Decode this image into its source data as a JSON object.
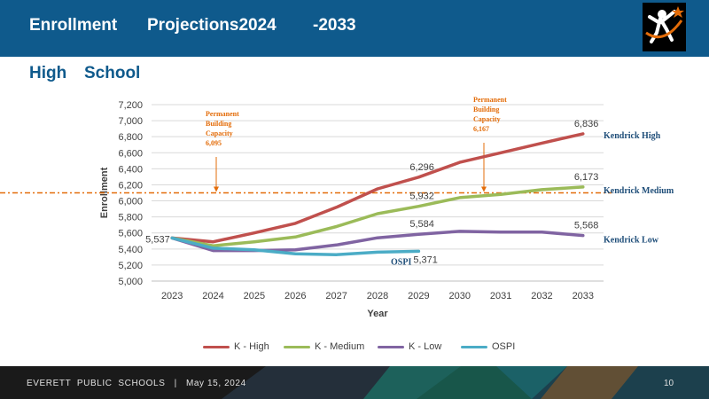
{
  "header": {
    "title_part1": "Enrollment",
    "title_part2": "Projections2024",
    "title_part3": "-2033"
  },
  "subtitle_part1": "High",
  "subtitle_part2": "School",
  "footer": {
    "org": "EVERETT  PUBLIC  SCHOOLS   |   May 15, 2024",
    "page": "10"
  },
  "colors": {
    "header_bg": "#0f5a8c",
    "k_high": "#c0504d",
    "k_medium": "#9bbb59",
    "k_low": "#8064a2",
    "ospi": "#4bacc6",
    "capacity": "#e36c09",
    "annotation_blue": "#1f4e79"
  },
  "chart_data": {
    "type": "line",
    "xlabel": "Year",
    "ylabel": "Enrollment",
    "ylim": [
      5000,
      7200
    ],
    "y_ticks": [
      "5,000",
      "5,200",
      "5,400",
      "5,600",
      "5,800",
      "6,000",
      "6,200",
      "6,400",
      "6,600",
      "6,800",
      "7,000",
      "7,200"
    ],
    "categories": [
      "2023",
      "2024",
      "2025",
      "2026",
      "2027",
      "2028",
      "2029",
      "2030",
      "2031",
      "2032",
      "2033"
    ],
    "series": [
      {
        "name": "K - High",
        "color": "#c0504d",
        "values": [
          5537,
          5490,
          5600,
          5720,
          5920,
          6150,
          6296,
          6480,
          6600,
          6720,
          6836
        ]
      },
      {
        "name": "K - Medium",
        "color": "#9bbb59",
        "values": [
          5537,
          5440,
          5490,
          5550,
          5680,
          5840,
          5932,
          6040,
          6080,
          6140,
          6173
        ]
      },
      {
        "name": "K - Low",
        "color": "#8064a2",
        "values": [
          5537,
          5380,
          5380,
          5390,
          5450,
          5540,
          5584,
          5620,
          5610,
          5610,
          5568
        ]
      },
      {
        "name": "OSPI",
        "color": "#4bacc6",
        "values": [
          5537,
          5410,
          5390,
          5340,
          5330,
          5360,
          5371,
          null,
          null,
          null,
          null
        ]
      }
    ],
    "data_labels": [
      {
        "text": "5,537",
        "series": "K - High",
        "x": "2023",
        "value": 5537
      },
      {
        "text": "6,296",
        "series": "K - High",
        "x": "2029",
        "value": 6296
      },
      {
        "text": "6,836",
        "series": "K - High",
        "x": "2033",
        "value": 6836
      },
      {
        "text": "5,932",
        "series": "K - Medium",
        "x": "2029",
        "value": 5932
      },
      {
        "text": "6,173",
        "series": "K - Medium",
        "x": "2033",
        "value": 6173
      },
      {
        "text": "5,584",
        "series": "K - Low",
        "x": "2029",
        "value": 5584
      },
      {
        "text": "5,568",
        "series": "K - Low",
        "x": "2033",
        "value": 5568
      },
      {
        "text": "5,371",
        "series": "OSPI",
        "x": "2029",
        "value": 5371
      }
    ],
    "capacity_line": {
      "value": 6100
    },
    "annotations": [
      {
        "lines": [
          "Permanent",
          "Building",
          "Capacity",
          "6,095"
        ],
        "x_year": 2024
      },
      {
        "lines": [
          "Permanent",
          "Building",
          "Capacity",
          "6,167"
        ],
        "x_year": 2030
      }
    ],
    "series_end_labels": [
      {
        "text": "Kendrick    High",
        "value": 6836
      },
      {
        "text": "Kendrick    Medium",
        "value": 6173
      },
      {
        "text": "Kendrick    Low",
        "value": 5568
      },
      {
        "text": "OSPI",
        "value": 5371
      }
    ],
    "grid": true,
    "legend_position": "bottom"
  }
}
